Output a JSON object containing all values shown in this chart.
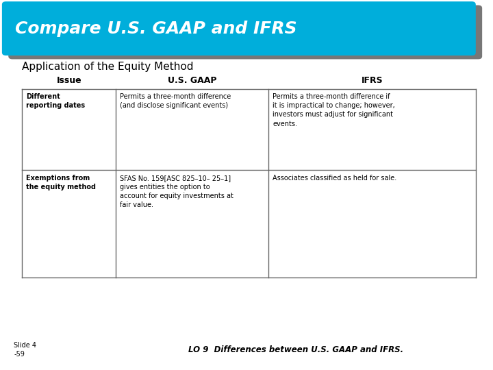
{
  "title": "Compare U.S. GAAP and IFRS",
  "subtitle": "Application of the Equity Method",
  "header_bg": "#00AEDB",
  "header_shadow_color": "#777777",
  "col_headers": [
    "Issue",
    "U.S. GAAP",
    "IFRS"
  ],
  "rows": [
    {
      "issue": "Different\nreporting dates",
      "gaap": "Permits a three-month difference\n(and disclose significant events)",
      "ifrs": "Permits a three-month difference if\nit is impractical to change; however,\ninvestors must adjust for significant\nevents."
    },
    {
      "issue": "Exemptions from\nthe equity method",
      "gaap": "SFAS No. 159[ASC 825–10– 25–1]\ngives entities the option to\naccount for equity investments at\nfair value.",
      "ifrs": "Associates classified as held for sale."
    }
  ],
  "footer_left": "Slide 4\n-59",
  "footer_right": "LO 9  Differences between U.S. GAAP and IFRS.",
  "bg_color": "#FFFFFF",
  "table_border_color": "#666666",
  "text_color": "#000000",
  "header_text_color": "#FFFFFF",
  "col_header_text_color": "#000000"
}
